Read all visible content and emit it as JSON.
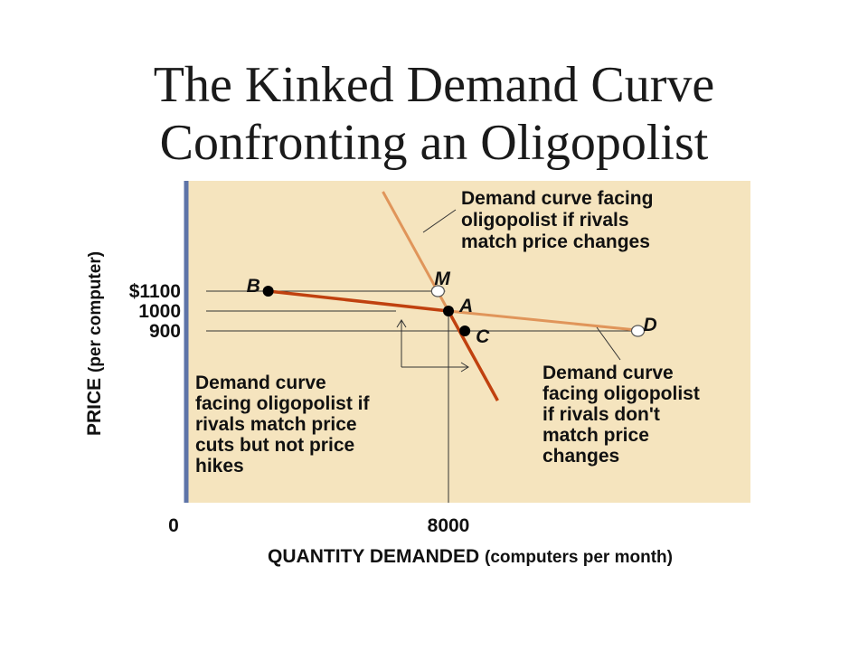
{
  "title": {
    "line1": "The Kinked Demand Curve",
    "line2": "Confronting an Oligopolist"
  },
  "chart_data": {
    "type": "line",
    "ylabel_main": "PRICE",
    "ylabel_unit": "(per computer)",
    "xlabel_main": "QUANTITY DEMANDED",
    "xlabel_unit": "(computers per month)",
    "x_ticks": [
      "0",
      "8000"
    ],
    "y_ticks": [
      "$1100",
      "1000",
      "900"
    ],
    "points": [
      {
        "label": "B",
        "x": 2500,
        "y": 1100
      },
      {
        "label": "M",
        "x": 7900,
        "y": 1100
      },
      {
        "label": "A",
        "x": 8000,
        "y": 1000
      },
      {
        "label": "C",
        "x": 8500,
        "y": 900
      },
      {
        "label": "D",
        "x": 14000,
        "y": 900
      }
    ],
    "series": [
      {
        "color": "#e0955a",
        "points": [
          [
            6000,
            1600
          ],
          [
            8000,
            1000
          ],
          [
            9500,
            550
          ]
        ]
      },
      {
        "color": "#e0955a",
        "points": [
          [
            8000,
            1000
          ],
          [
            14000,
            900
          ]
        ]
      },
      {
        "color": "#c0410f",
        "points": [
          [
            2500,
            1100
          ],
          [
            8000,
            1000
          ],
          [
            9500,
            550
          ]
        ]
      }
    ],
    "annotations": {
      "top_right": [
        "Demand curve facing",
        "oligopolist if rivals",
        "match price changes"
      ],
      "bottom_left": [
        "Demand curve",
        "facing oligopolist if",
        "rivals match price",
        "cuts but not price",
        "hikes"
      ],
      "bottom_right": [
        "Demand curve",
        "facing oligopolist",
        "if rivals don't",
        "match price",
        "changes"
      ]
    },
    "colors": {
      "plot_background": "#f5e4be",
      "axis": "#5e74a8",
      "light_curve": "#e0955a",
      "dark_curve": "#c0410f"
    }
  }
}
